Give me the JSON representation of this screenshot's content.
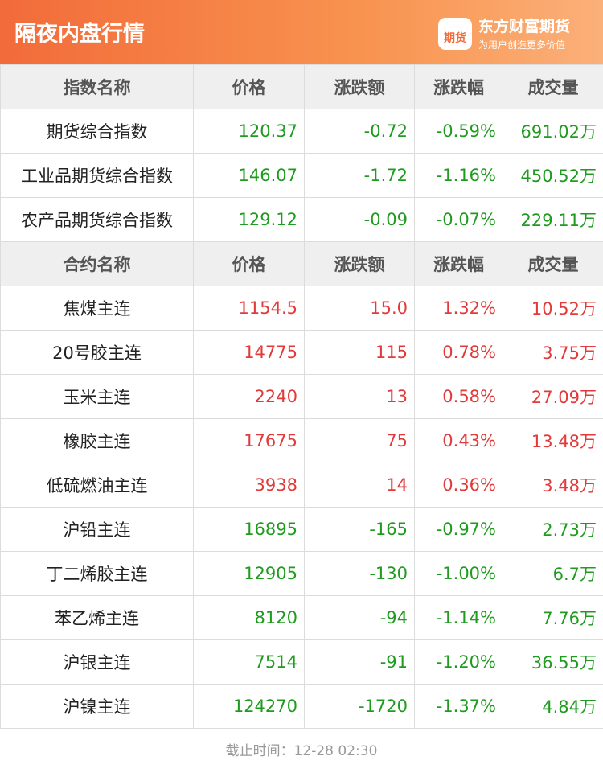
{
  "header": {
    "title": "隔夜内盘行情",
    "logo_text": "期货",
    "brand": "东方财富期货",
    "slogan": "为用户创造更多价值"
  },
  "table": {
    "sections": [
      {
        "columns": [
          "指数名称",
          "价格",
          "涨跌额",
          "涨跌幅",
          "成交量"
        ],
        "rows": [
          {
            "color": "#1f9b1f",
            "cells": [
              "期货综合指数",
              "120.37",
              "-0.72",
              "-0.59%",
              "691.02万"
            ]
          },
          {
            "color": "#1f9b1f",
            "cells": [
              "工业品期货综合指数",
              "146.07",
              "-1.72",
              "-1.16%",
              "450.52万"
            ]
          },
          {
            "color": "#1f9b1f",
            "cells": [
              "农产品期货综合指数",
              "129.12",
              "-0.09",
              "-0.07%",
              "229.11万"
            ]
          }
        ]
      },
      {
        "columns": [
          "合约名称",
          "价格",
          "涨跌额",
          "涨跌幅",
          "成交量"
        ],
        "rows": [
          {
            "color": "#e23a3a",
            "cells": [
              "焦煤主连",
              "1154.5",
              "15.0",
              "1.32%",
              "10.52万"
            ]
          },
          {
            "color": "#e23a3a",
            "cells": [
              "20号胶主连",
              "14775",
              "115",
              "0.78%",
              "3.75万"
            ]
          },
          {
            "color": "#e23a3a",
            "cells": [
              "玉米主连",
              "2240",
              "13",
              "0.58%",
              "27.09万"
            ]
          },
          {
            "color": "#e23a3a",
            "cells": [
              "橡胶主连",
              "17675",
              "75",
              "0.43%",
              "13.48万"
            ]
          },
          {
            "color": "#e23a3a",
            "cells": [
              "低硫燃油主连",
              "3938",
              "14",
              "0.36%",
              "3.48万"
            ]
          },
          {
            "color": "#1f9b1f",
            "cells": [
              "沪铅主连",
              "16895",
              "-165",
              "-0.97%",
              "2.73万"
            ]
          },
          {
            "color": "#1f9b1f",
            "cells": [
              "丁二烯胶主连",
              "12905",
              "-130",
              "-1.00%",
              "6.7万"
            ]
          },
          {
            "color": "#1f9b1f",
            "cells": [
              "苯乙烯主连",
              "8120",
              "-94",
              "-1.14%",
              "7.76万"
            ]
          },
          {
            "color": "#1f9b1f",
            "cells": [
              "沪银主连",
              "7514",
              "-91",
              "-1.20%",
              "36.55万"
            ]
          },
          {
            "color": "#1f9b1f",
            "cells": [
              "沪镍主连",
              "124270",
              "-1720",
              "-1.37%",
              "4.84万"
            ]
          }
        ]
      }
    ]
  },
  "footer": "截止时间：12-28 02:30"
}
